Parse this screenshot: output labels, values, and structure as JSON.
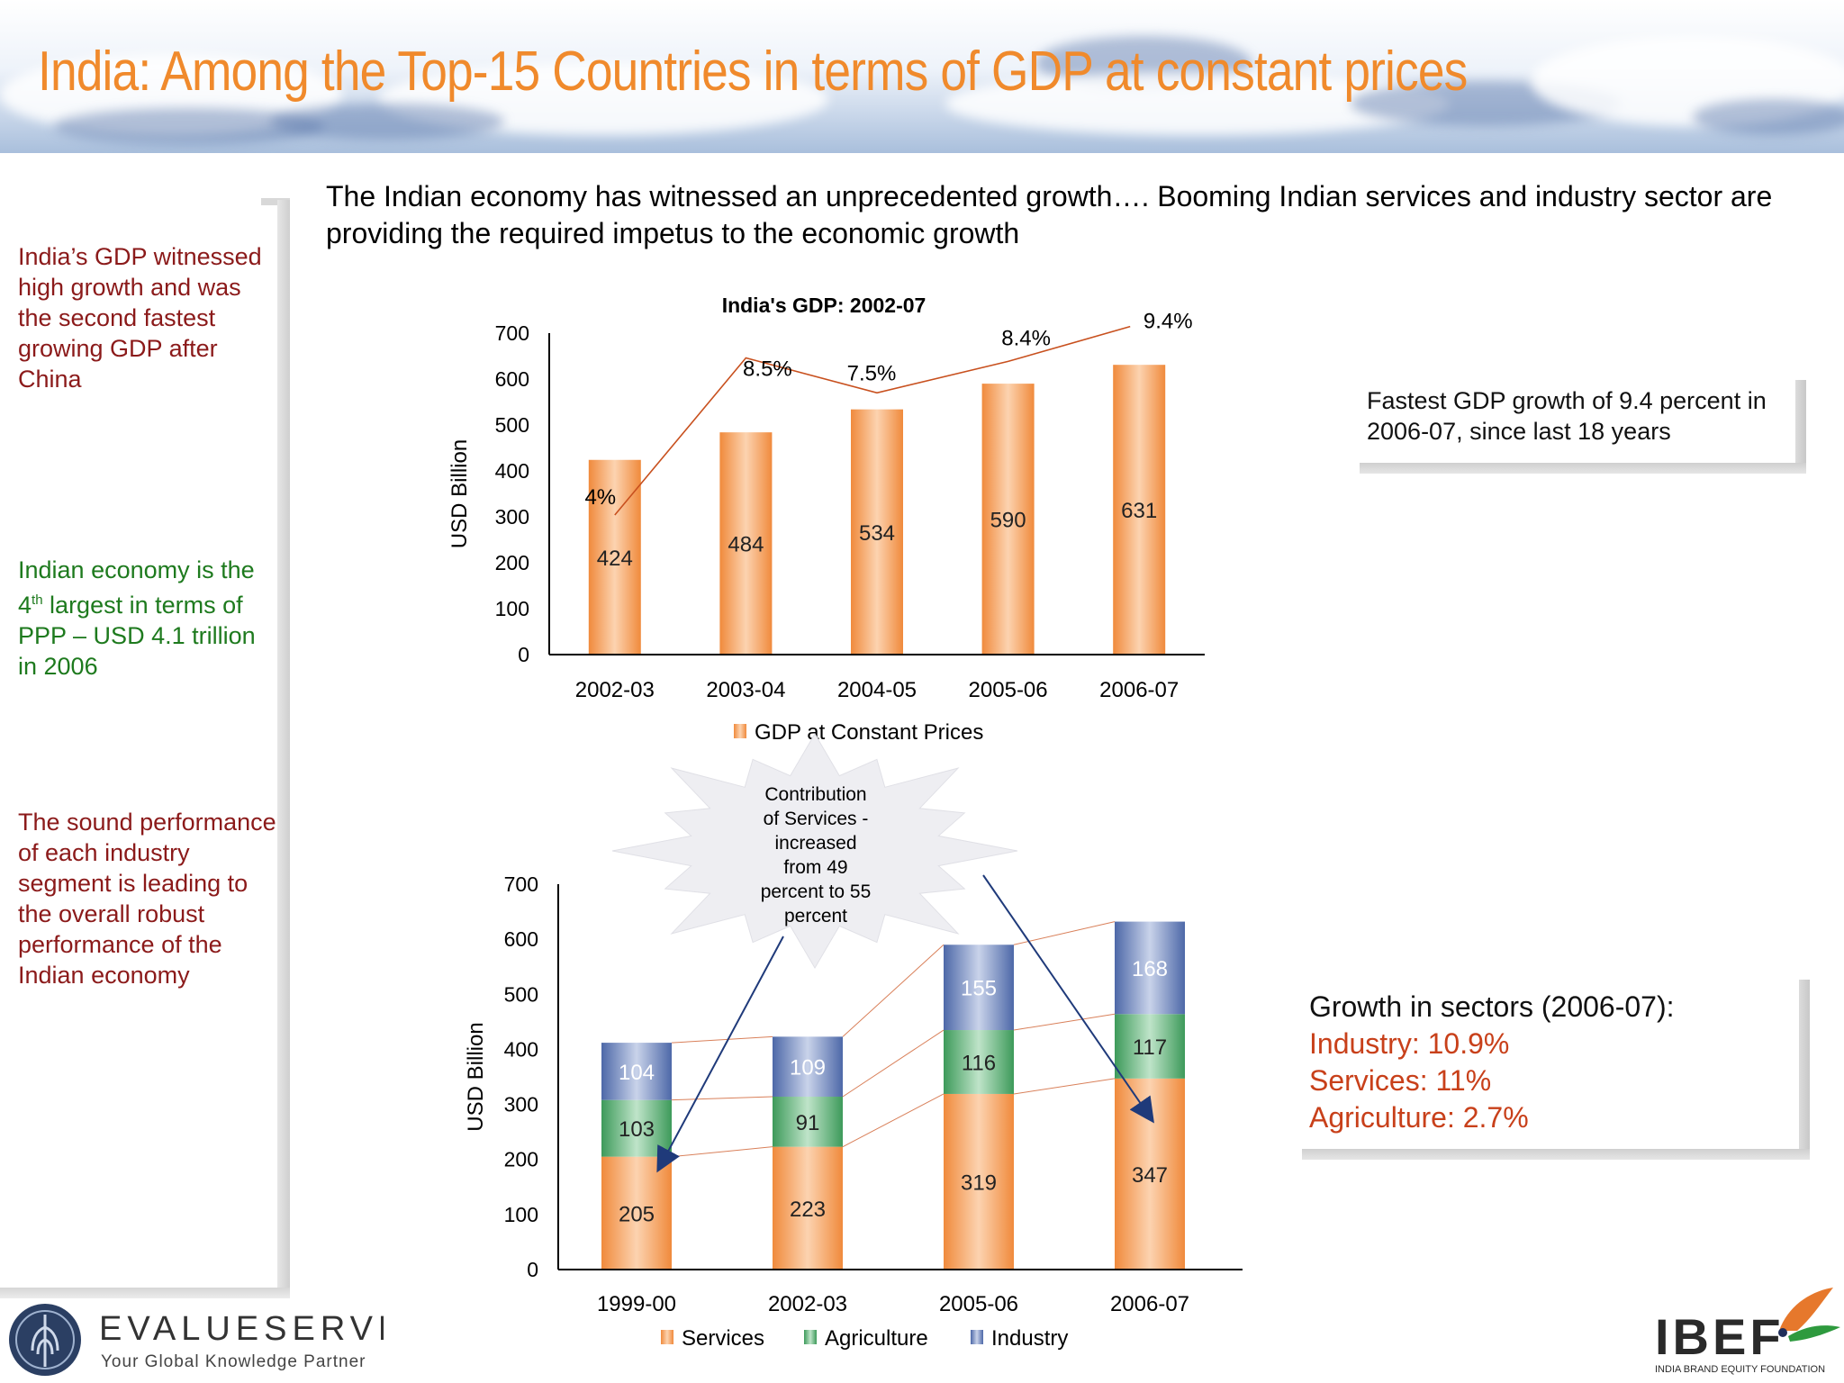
{
  "slide": {
    "title": "India: Among the Top-15 Countries in terms of GDP at constant prices",
    "subtitle": "The Indian economy has witnessed an unprecedented growth…. Booming Indian services and industry sector are providing the required impetus to the economic growth"
  },
  "sidebar": {
    "note_gdp": "India’s GDP witnessed high growth and was the second fastest growing GDP after China",
    "note_ppp_prefix": "Indian economy is the 4",
    "note_ppp_sup": "th",
    "note_ppp_suffix": " largest in terms of PPP – USD 4.1 trillion in 2006",
    "note_industry": "The sound performance of each industry segment is leading to the overall robust performance of the Indian economy"
  },
  "callouts": {
    "fastest_growth": "Fastest GDP growth of 9.4 percent in 2006-07, since last 18 years",
    "sectors_heading": "Growth in sectors (2006-07):",
    "sectors": [
      "Industry: 10.9%",
      "Services: 11%",
      "Agriculture: 2.7%"
    ],
    "starburst": [
      "Contribution",
      "of Services -",
      "increased",
      "from 49",
      "percent to 55",
      "percent"
    ]
  },
  "colors": {
    "title": "#f08a2c",
    "bar": "#f5a36a",
    "services": "#f5a36a",
    "agriculture": "#4ea86a",
    "industry": "#6a84b8",
    "growth_line": "#c8501e",
    "arrow": "#1f3a7a"
  },
  "chart_data": [
    {
      "type": "bar",
      "title": "India's GDP: 2002-07",
      "ylabel": "USD Billion",
      "ylim": [
        0,
        700
      ],
      "yticks": [
        "0",
        "100",
        "200",
        "300",
        "400",
        "500",
        "600",
        "700"
      ],
      "categories": [
        "2002-03",
        "2003-04",
        "2004-05",
        "2005-06",
        "2006-07"
      ],
      "series": [
        {
          "name": "GDP at Constant Prices",
          "values": [
            424,
            484,
            534,
            590,
            631
          ]
        }
      ],
      "value_labels": [
        "424",
        "484",
        "534",
        "590",
        "631"
      ],
      "growth_labels": [
        "4%",
        "8.5%",
        "7.5%",
        "8.4%",
        "9.4%"
      ],
      "growth_values": [
        4.0,
        8.5,
        7.5,
        8.4,
        9.4
      ],
      "legend": "bottom"
    },
    {
      "type": "bar",
      "stacked": true,
      "ylabel": "USD Billion",
      "ylim": [
        0,
        700
      ],
      "yticks": [
        "0",
        "100",
        "200",
        "300",
        "400",
        "500",
        "600",
        "700"
      ],
      "categories": [
        "1999-00",
        "2002-03",
        "2005-06",
        "2006-07"
      ],
      "series": [
        {
          "name": "Services",
          "values": [
            205,
            223,
            319,
            347
          ],
          "labels": [
            "205",
            "223",
            "319",
            "347"
          ]
        },
        {
          "name": "Agriculture",
          "values": [
            103,
            91,
            116,
            117
          ],
          "labels": [
            "103",
            "91",
            "116",
            "117"
          ]
        },
        {
          "name": "Industry",
          "values": [
            104,
            109,
            155,
            168
          ],
          "labels": [
            "104",
            "109",
            "155",
            "168"
          ]
        }
      ],
      "legend": "bottom"
    }
  ],
  "logos": {
    "evalueserve_name": "EVALUESERVE",
    "evalueserve_tagline": "Your Global Knowledge Partner",
    "ibef_name": "IBEF",
    "ibef_tagline": "INDIA BRAND EQUITY FOUNDATION"
  }
}
